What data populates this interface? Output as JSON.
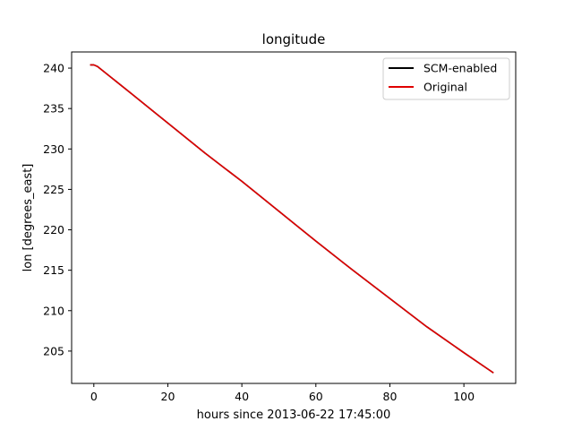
{
  "chart_data": {
    "type": "line",
    "title": "longitude",
    "xlabel": "hours since 2013-06-22 17:45:00",
    "ylabel": "lon [degrees_east]",
    "xlim": [
      -6,
      114
    ],
    "ylim": [
      201,
      242
    ],
    "xticks": [
      0,
      20,
      40,
      60,
      80,
      100
    ],
    "yticks": [
      205,
      210,
      215,
      220,
      225,
      230,
      235,
      240
    ],
    "grid": false,
    "legend_position": "top-right",
    "series": [
      {
        "name": "SCM-enabled",
        "color": "#000000",
        "x": [
          -1,
          0,
          1,
          10,
          20,
          30,
          40,
          50,
          60,
          70,
          80,
          90,
          100,
          108
        ],
        "y": [
          240.4,
          240.4,
          240.2,
          236.9,
          233.2,
          229.5,
          226.0,
          222.3,
          218.6,
          215.0,
          211.5,
          208.0,
          204.8,
          202.3
        ]
      },
      {
        "name": "Original",
        "color": "#e00000",
        "x": [
          -1,
          0,
          1,
          10,
          20,
          30,
          40,
          50,
          60,
          70,
          80,
          90,
          100,
          108
        ],
        "y": [
          240.4,
          240.4,
          240.2,
          236.9,
          233.2,
          229.5,
          226.0,
          222.3,
          218.6,
          215.0,
          211.5,
          208.0,
          204.8,
          202.3
        ]
      }
    ]
  }
}
